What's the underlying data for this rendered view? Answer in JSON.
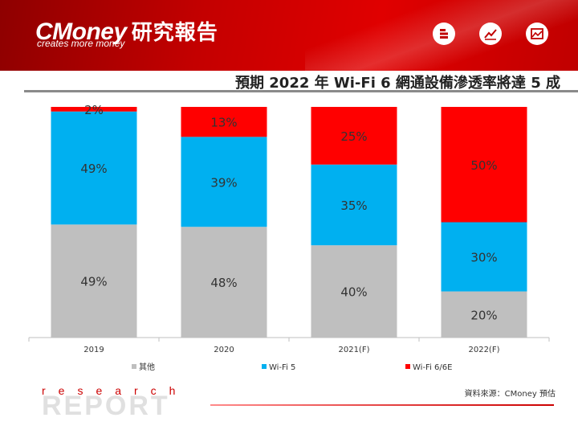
{
  "header": {
    "brand": "CMoney",
    "brand_zh": "研究報告",
    "tagline": "creates more money",
    "icons": [
      "stack-icon",
      "trend-line-icon",
      "chart-image-icon"
    ]
  },
  "title": "預期 2022 年 Wi-Fi 6 網通設備滲透率將達 5 成",
  "chart_data": {
    "type": "bar",
    "stacked": true,
    "percent": true,
    "categories": [
      "2019",
      "2020",
      "2021(F)",
      "2022(F)"
    ],
    "series": [
      {
        "name": "其他",
        "color": "#bfbfbf",
        "values": [
          49,
          48,
          40,
          20
        ],
        "labels": [
          "49%",
          "48%",
          "40%",
          "20%"
        ]
      },
      {
        "name": "Wi-Fi 5",
        "color": "#00b0f0",
        "values": [
          49,
          39,
          35,
          30
        ],
        "labels": [
          "49%",
          "39%",
          "35%",
          "30%"
        ]
      },
      {
        "name": "Wi-Fi 6/6E",
        "color": "#ff0000",
        "values": [
          2,
          13,
          25,
          50
        ],
        "labels": [
          "2%",
          "13%",
          "25%",
          "50%"
        ]
      }
    ],
    "ylim": [
      0,
      100
    ],
    "legend_position": "bottom",
    "grid": false
  },
  "footer": {
    "research": "research",
    "report": "REPORT",
    "source": "資料來源：CMoney 預估"
  }
}
